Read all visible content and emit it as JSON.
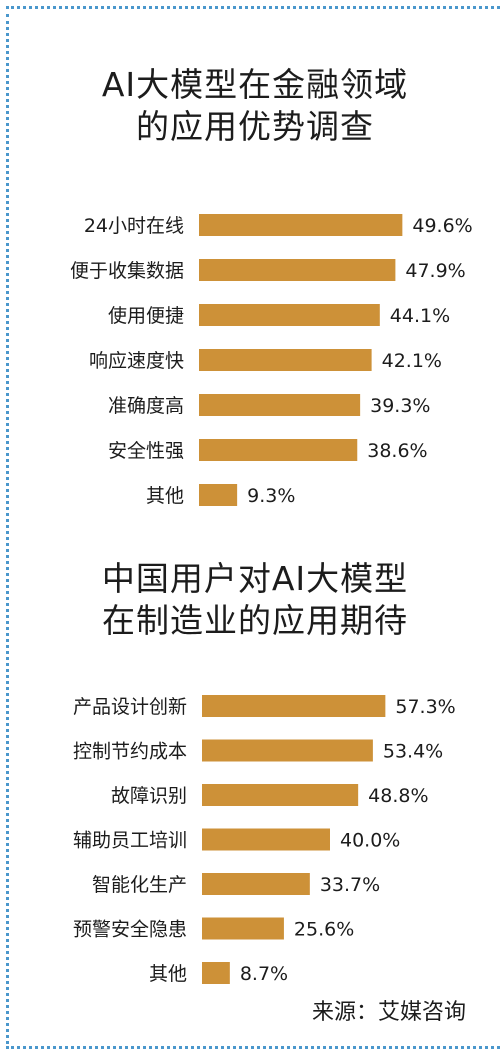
{
  "chart_data": [
    {
      "type": "bar",
      "title": "AI大模型在金融领域的应用优势调查",
      "title_lines": [
        "AI大模型在金融领域",
        "的应用优势调查"
      ],
      "categories": [
        "24小时在线",
        "便于收集数据",
        "使用便捷",
        "响应速度快",
        "准确度高",
        "安全性强",
        "其他"
      ],
      "values": [
        49.6,
        47.9,
        44.1,
        42.1,
        39.3,
        38.6,
        9.3
      ],
      "value_labels": [
        "49.6%",
        "47.9%",
        "44.1%",
        "42.1%",
        "39.3%",
        "38.6%",
        "9.3%"
      ],
      "orientation": "horizontal",
      "bar_color": "#cd9138"
    },
    {
      "type": "bar",
      "title": "中国用户对AI大模型在制造业的应用期待",
      "title_lines": [
        "中国用户对AI大模型",
        "在制造业的应用期待"
      ],
      "categories": [
        "产品设计创新",
        "控制节约成本",
        "故障识别",
        "辅助员工培训",
        "智能化生产",
        "预警安全隐患",
        "其他"
      ],
      "values": [
        57.3,
        53.4,
        48.8,
        40.0,
        33.7,
        25.6,
        8.7
      ],
      "value_labels": [
        "57.3%",
        "53.4%",
        "48.8%",
        "40.0%",
        "33.7%",
        "25.6%",
        "8.7%"
      ],
      "orientation": "horizontal",
      "bar_color": "#cd9138"
    }
  ],
  "source": "来源：艾媒咨询",
  "colors": {
    "border": "#4a97cc",
    "bar": "#cd9138",
    "text": "#1c1c1c"
  }
}
